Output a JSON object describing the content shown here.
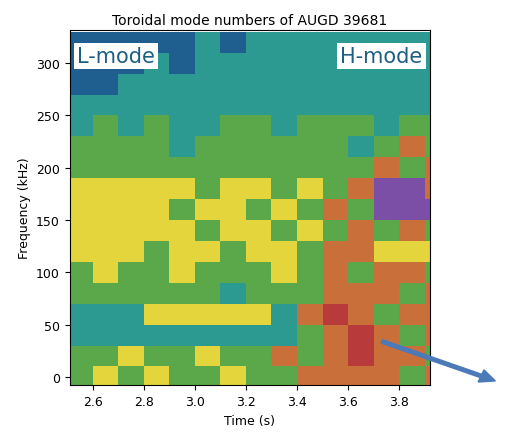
{
  "chart_data": {
    "type": "heatmap",
    "title": "Toroidal mode numbers of AUGD 39681",
    "x_label": "Time (s)",
    "y_label": "Frequency (kHz)",
    "annotations": [
      "L-mode",
      "H-mode"
    ],
    "xlim": [
      2.51,
      3.92
    ],
    "ylim": [
      -8,
      332
    ],
    "xticks": [
      2.6,
      2.8,
      3.0,
      3.2,
      3.4,
      3.6,
      3.8
    ],
    "yticks": [
      0,
      50,
      100,
      150,
      200,
      250,
      300
    ],
    "colors": [
      "#1f5f8f",
      "#5aa84a",
      "#e4d53c",
      "#c9703a",
      "#7b4fa5",
      "#2c9a90",
      "#b83a3a"
    ],
    "x_edges": [
      2.5,
      2.6,
      2.7,
      2.8,
      2.9,
      3.0,
      3.1,
      3.2,
      3.3,
      3.4,
      3.5,
      3.6,
      3.7,
      3.8,
      3.9,
      4.0
    ],
    "y_edges": [
      -10,
      10,
      30,
      50,
      70,
      90,
      110,
      130,
      150,
      170,
      190,
      210,
      230,
      250,
      270,
      290,
      310,
      330
    ],
    "cells": [
      [
        1,
        2,
        1,
        2,
        1,
        1,
        2,
        1,
        1,
        3,
        3,
        3,
        3,
        1,
        3
      ],
      [
        1,
        1,
        2,
        1,
        1,
        2,
        1,
        1,
        3,
        1,
        3,
        6,
        3,
        3,
        1
      ],
      [
        5,
        5,
        5,
        5,
        5,
        5,
        5,
        5,
        5,
        1,
        3,
        6,
        3,
        1,
        3
      ],
      [
        5,
        5,
        5,
        2,
        2,
        2,
        2,
        2,
        5,
        3,
        6,
        3,
        1,
        3,
        3
      ],
      [
        1,
        1,
        1,
        1,
        1,
        1,
        5,
        1,
        1,
        1,
        3,
        3,
        3,
        1,
        3
      ],
      [
        1,
        2,
        1,
        1,
        2,
        1,
        1,
        1,
        2,
        1,
        3,
        1,
        3,
        3,
        1
      ],
      [
        2,
        2,
        2,
        1,
        2,
        2,
        1,
        2,
        2,
        1,
        3,
        3,
        2,
        2,
        2
      ],
      [
        2,
        2,
        2,
        2,
        2,
        1,
        2,
        2,
        1,
        2,
        1,
        3,
        1,
        3,
        1
      ],
      [
        2,
        2,
        2,
        2,
        1,
        2,
        2,
        1,
        2,
        1,
        3,
        1,
        4,
        4,
        4
      ],
      [
        2,
        2,
        2,
        2,
        2,
        1,
        2,
        2,
        1,
        2,
        1,
        3,
        4,
        4,
        3
      ],
      [
        1,
        1,
        1,
        1,
        1,
        1,
        1,
        1,
        1,
        1,
        1,
        1,
        3,
        1,
        3
      ],
      [
        1,
        1,
        1,
        1,
        5,
        1,
        1,
        1,
        1,
        1,
        1,
        5,
        1,
        3,
        1
      ],
      [
        5,
        1,
        5,
        1,
        5,
        5,
        1,
        1,
        5,
        1,
        1,
        1,
        5,
        1,
        1
      ],
      [
        5,
        5,
        5,
        5,
        5,
        5,
        5,
        5,
        5,
        5,
        5,
        5,
        5,
        5,
        5
      ],
      [
        0,
        0,
        5,
        5,
        5,
        5,
        5,
        5,
        5,
        5,
        5,
        5,
        5,
        5,
        5
      ],
      [
        0,
        0,
        0,
        5,
        0,
        5,
        5,
        5,
        5,
        5,
        5,
        5,
        5,
        5,
        5
      ],
      [
        0,
        0,
        0,
        0,
        0,
        5,
        0,
        5,
        5,
        5,
        5,
        5,
        5,
        5,
        5
      ]
    ]
  }
}
